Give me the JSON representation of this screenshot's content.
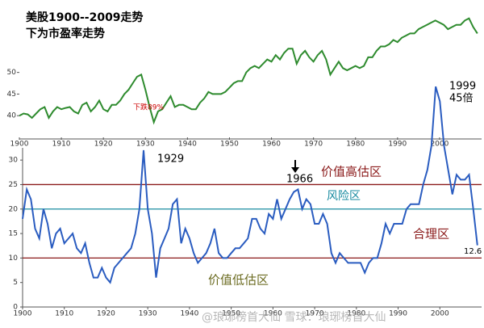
{
  "chart_data": [
    {
      "type": "line",
      "title": "美股1900--2009走势",
      "subtitle": "下为市盈率走势",
      "color": "#2e8b2e",
      "x": [
        1900,
        1901,
        1902,
        1903,
        1904,
        1905,
        1906,
        1907,
        1908,
        1909,
        1910,
        1911,
        1912,
        1913,
        1914,
        1915,
        1916,
        1917,
        1918,
        1919,
        1920,
        1921,
        1922,
        1923,
        1924,
        1925,
        1926,
        1927,
        1928,
        1929,
        1930,
        1931,
        1932,
        1933,
        1934,
        1935,
        1936,
        1937,
        1938,
        1939,
        1940,
        1941,
        1942,
        1943,
        1944,
        1945,
        1946,
        1947,
        1948,
        1949,
        1950,
        1951,
        1952,
        1953,
        1954,
        1955,
        1956,
        1957,
        1958,
        1959,
        1960,
        1961,
        1962,
        1963,
        1964,
        1965,
        1966,
        1967,
        1968,
        1969,
        1970,
        1971,
        1972,
        1973,
        1974,
        1975,
        1976,
        1977,
        1978,
        1979,
        1980,
        1981,
        1982,
        1983,
        1984,
        1985,
        1986,
        1987,
        1988,
        1989,
        1990,
        1991,
        1992,
        1993,
        1994,
        1995,
        1996,
        1997,
        1998,
        1999,
        2000,
        2001,
        2002,
        2003,
        2004,
        2005,
        2006,
        2007,
        2008,
        2009
      ],
      "values": [
        40,
        40.5,
        40.3,
        39.5,
        40.5,
        41.5,
        42,
        39.5,
        41,
        42,
        41.5,
        41.8,
        42,
        41,
        40.5,
        42.5,
        43,
        41,
        42,
        43.5,
        41.5,
        41,
        42.5,
        42.5,
        43.5,
        45,
        46,
        47.5,
        49,
        49.5,
        46,
        42,
        38.5,
        41,
        41.5,
        43,
        44.5,
        42,
        42.5,
        42.5,
        42,
        41.5,
        41.5,
        43,
        44,
        45.5,
        45,
        45,
        45,
        45.5,
        46.5,
        47.5,
        48,
        48,
        50,
        51,
        51.5,
        51,
        52,
        53,
        52.5,
        54,
        53,
        54.5,
        55.5,
        55.5,
        52,
        54,
        55,
        53.5,
        52.5,
        54,
        55,
        53,
        49.5,
        51,
        52.5,
        51,
        50.5,
        51,
        51.5,
        51,
        51.5,
        53.5,
        53.5,
        55,
        56,
        56,
        56.5,
        57.5,
        57,
        58,
        58.5,
        59,
        59,
        60,
        60.5,
        61,
        61.5,
        62,
        61.5,
        61,
        60,
        60.5,
        61,
        61,
        62,
        62.5,
        60.5,
        59
      ],
      "xlim": [
        1900,
        2010
      ],
      "xticks": [
        1900,
        1910,
        1920,
        1930,
        1940,
        1950,
        1960,
        1970,
        1980,
        1990,
        2000
      ],
      "ylim": [
        35,
        63
      ],
      "yticks": [
        40,
        45,
        50
      ],
      "annotations": [
        "下跌89%"
      ]
    },
    {
      "type": "line",
      "color": "#2a5cc0",
      "x": [
        1900,
        1901,
        1902,
        1903,
        1904,
        1905,
        1906,
        1907,
        1908,
        1909,
        1910,
        1911,
        1912,
        1913,
        1914,
        1915,
        1916,
        1917,
        1918,
        1919,
        1920,
        1921,
        1922,
        1923,
        1924,
        1925,
        1926,
        1927,
        1928,
        1929,
        1930,
        1931,
        1932,
        1933,
        1934,
        1935,
        1936,
        1937,
        1938,
        1939,
        1940,
        1941,
        1942,
        1943,
        1944,
        1945,
        1946,
        1947,
        1948,
        1949,
        1950,
        1951,
        1952,
        1953,
        1954,
        1955,
        1956,
        1957,
        1958,
        1959,
        1960,
        1961,
        1962,
        1963,
        1964,
        1965,
        1966,
        1967,
        1968,
        1969,
        1970,
        1971,
        1972,
        1973,
        1974,
        1975,
        1976,
        1977,
        1978,
        1979,
        1980,
        1981,
        1982,
        1983,
        1984,
        1985,
        1986,
        1987,
        1988,
        1989,
        1990,
        1991,
        1992,
        1993,
        1994,
        1995,
        1996,
        1997,
        1998,
        1999,
        2000,
        2001,
        2002,
        2003,
        2004,
        2005,
        2006,
        2007,
        2008,
        2009
      ],
      "values": [
        18,
        24,
        22,
        16,
        14,
        20,
        17,
        12,
        15,
        16,
        13,
        14,
        15,
        12,
        11,
        13,
        9,
        6,
        6,
        8,
        6,
        5,
        8,
        9,
        10,
        11,
        12,
        15,
        20,
        32,
        20,
        15,
        6,
        12,
        14,
        16,
        21,
        22,
        13,
        16,
        14,
        11,
        9,
        10,
        11,
        13,
        16,
        11,
        10,
        10,
        11,
        12,
        12,
        13,
        14,
        18,
        18,
        16,
        15,
        19,
        18,
        22,
        18,
        20,
        22,
        23.5,
        24,
        20,
        22,
        21,
        17,
        17,
        19,
        17,
        11,
        9,
        11,
        10,
        9,
        9,
        9,
        9,
        7,
        9,
        10,
        10,
        13,
        17,
        15,
        17,
        17,
        17,
        20,
        21,
        21,
        21,
        25,
        28,
        33,
        45,
        42,
        33,
        28,
        23,
        27,
        26,
        26,
        27,
        20,
        12.6
      ],
      "xlim": [
        1900,
        2010
      ],
      "xticks": [
        1900,
        1910,
        1920,
        1930,
        1940,
        1950,
        1960,
        1970,
        1980,
        1990,
        2000
      ],
      "ylim": [
        0,
        32.5
      ],
      "yticks": [
        0,
        5,
        10,
        15,
        20,
        25,
        30
      ],
      "reference_lines": [
        {
          "value": 25,
          "color": "#8b1a1a"
        },
        {
          "value": 20,
          "color": "#1a8ba0"
        },
        {
          "value": 10,
          "color": "#8b1a1a"
        }
      ],
      "annotations": [
        "1929",
        "1966",
        "价值高估区",
        "风险区",
        "合理区",
        "价值低估区",
        "1999",
        "45倍",
        "12.6"
      ],
      "watermark": "@琅琊榜首大仙   雪球：琅琊榜首大仙"
    }
  ]
}
